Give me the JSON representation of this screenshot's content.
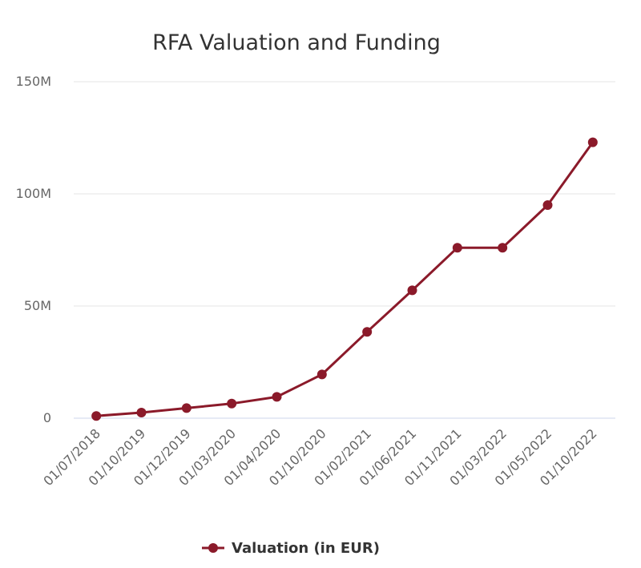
{
  "chart_data": {
    "type": "line",
    "title": "RFA Valuation and Funding",
    "xlabel": "",
    "ylabel": "",
    "categories": [
      "01/07/2018",
      "01/10/2019",
      "01/12/2019",
      "01/03/2020",
      "01/04/2020",
      "01/10/2020",
      "01/02/2021",
      "01/06/2021",
      "01/11/2021",
      "01/03/2022",
      "01/05/2022",
      "01/10/2022"
    ],
    "series": [
      {
        "name": "Valuation (in EUR)",
        "color": "#8b1a2a",
        "values": [
          1000000,
          2500000,
          4500000,
          6500000,
          9500000,
          19500000,
          38500000,
          57000000,
          76000000,
          76000000,
          95000000,
          123000000
        ]
      }
    ],
    "ylim": [
      0,
      150000000
    ],
    "yticks": [
      0,
      50000000,
      100000000,
      150000000
    ],
    "ytick_labels": [
      "0",
      "50M",
      "100M",
      "150M"
    ],
    "grid": true,
    "legend": "bottom-center"
  }
}
